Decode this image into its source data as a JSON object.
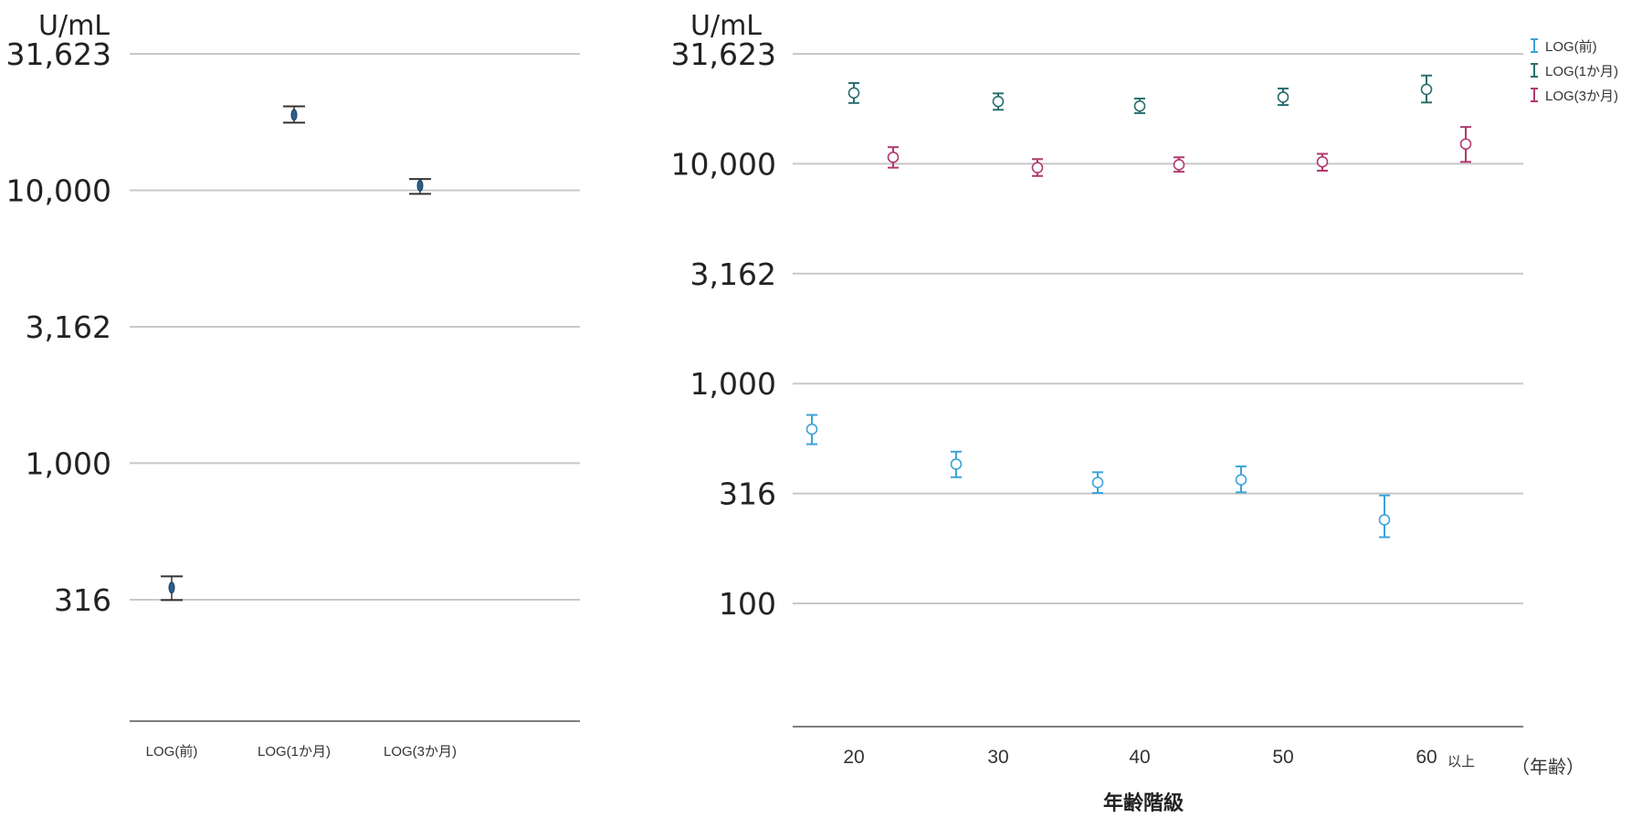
{
  "chart_data": [
    {
      "type": "errorbar",
      "ylabel": "U/mL",
      "yscale": "log",
      "ylim": [
        250,
        31623
      ],
      "yticks": [
        "31,623",
        "10,000",
        "3,162",
        "1,000",
        "316"
      ],
      "ytick_values": [
        31623,
        10000,
        3162,
        1000,
        316
      ],
      "grid": true,
      "categories": [
        "LOG(前)",
        "LOG(1か月)",
        "LOG(3か月)"
      ],
      "points": [
        {
          "mean": 350,
          "low": 315,
          "high": 385
        },
        {
          "mean": 18900,
          "low": 17700,
          "high": 20300
        },
        {
          "mean": 10400,
          "low": 9700,
          "high": 11000
        }
      ],
      "color": "#2a5f8a"
    },
    {
      "type": "errorbar",
      "ylabel": "U/mL",
      "yscale": "log",
      "ylim": [
        85,
        31623
      ],
      "yticks": [
        "31,623",
        "10,000",
        "3,162",
        "1,000",
        "316",
        "100"
      ],
      "ytick_values": [
        31623,
        10000,
        3162,
        1000,
        316,
        100
      ],
      "grid": true,
      "x_ticks": [
        "20",
        "30",
        "40",
        "50",
        "60"
      ],
      "x_tick_suffix": "以上",
      "x_unit": "（年齢）",
      "xlabel": "年齢階級",
      "legend_position": "top-right",
      "series": [
        {
          "name": "LOG(前)",
          "color": "#3ba3d9",
          "points": [
            {
              "group": 0,
              "mean": 620,
              "low": 530,
              "high": 720
            },
            {
              "group": 1,
              "mean": 430,
              "low": 375,
              "high": 490
            },
            {
              "group": 2,
              "mean": 355,
              "low": 318,
              "high": 395
            },
            {
              "group": 3,
              "mean": 365,
              "low": 320,
              "high": 420
            },
            {
              "group": 4,
              "mean": 240,
              "low": 200,
              "high": 310
            }
          ]
        },
        {
          "name": "LOG(1か月)",
          "color": "#2b6e6e",
          "points": [
            {
              "group": 0,
              "mean": 21000,
              "low": 18900,
              "high": 23300
            },
            {
              "group": 1,
              "mean": 19200,
              "low": 17600,
              "high": 20900
            },
            {
              "group": 2,
              "mean": 18300,
              "low": 17000,
              "high": 19800
            },
            {
              "group": 3,
              "mean": 20100,
              "low": 18500,
              "high": 22000
            },
            {
              "group": 4,
              "mean": 21800,
              "low": 19000,
              "high": 25200
            }
          ]
        },
        {
          "name": "LOG(3か月)",
          "color": "#b03a6e",
          "points": [
            {
              "group": 0,
              "mean": 10700,
              "low": 9600,
              "high": 11900
            },
            {
              "group": 1,
              "mean": 9600,
              "low": 8800,
              "high": 10500
            },
            {
              "group": 2,
              "mean": 9900,
              "low": 9200,
              "high": 10700
            },
            {
              "group": 3,
              "mean": 10200,
              "low": 9300,
              "high": 11100
            },
            {
              "group": 4,
              "mean": 12300,
              "low": 10200,
              "high": 14700
            }
          ]
        }
      ]
    }
  ]
}
